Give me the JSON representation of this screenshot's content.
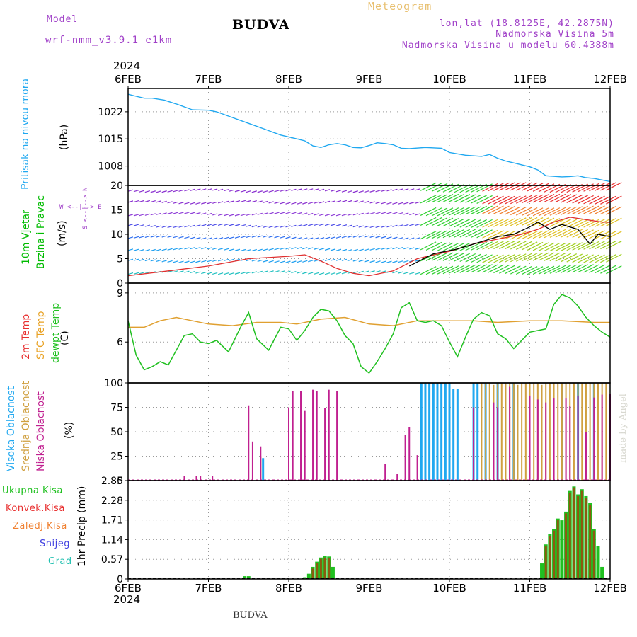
{
  "header": {
    "model_label": "Model",
    "model_name": "wrf-nmm_v3.9.1 e1km",
    "title": "BUDVA",
    "meteogram": "Meteogram",
    "lonlat": "lon,lat (18.8125E, 42.2875N)",
    "elev": "Nadmorska Visina 5m",
    "elev_model": "Nadmorska Visina u modelu 60.4388m",
    "footer": "BUDVA",
    "watermark": "made by Angel"
  },
  "time_axis": {
    "year": "2024",
    "ticks": [
      "6FEB",
      "7FEB",
      "8FEB",
      "9FEB",
      "10FEB",
      "11FEB",
      "12FEB"
    ]
  },
  "panels": {
    "pressure": {
      "labels": [
        "Pritisak na nivou mora",
        "(hPa)"
      ],
      "colors": [
        "#20a8f0",
        "#000000"
      ]
    },
    "wind": {
      "labels": [
        "10m Vjetar",
        "Brzina i Pravac",
        "(m/s)"
      ],
      "colors": [
        "#00bb00",
        "#00bb00",
        "#000000"
      ],
      "compass": "W <--|--> E",
      "compass_v": "S <--|--> N"
    },
    "temp": {
      "labels": [
        "2m Temp",
        "SFC Temp",
        "dewpt Temp",
        "(C)"
      ],
      "colors": [
        "#e83030",
        "#e8a020",
        "#20c020",
        "#000000"
      ]
    },
    "cloud": {
      "labels": [
        "Visoka Oblacnost",
        "Srednja Oblacnost",
        "Niska Oblacnost",
        "(%)"
      ],
      "colors": [
        "#20a8f0",
        "#d0a040",
        "#c02090",
        "#000000"
      ]
    },
    "precip": {
      "legend": [
        "Ukupna Kisa",
        "Konvek.Kisa",
        "Zaledj.Kisa",
        "Snijeg",
        "Grad"
      ],
      "legend_colors": [
        "#20c020",
        "#e83030",
        "#f08030",
        "#4040e0",
        "#20c0b0"
      ],
      "ylabel": "1hr Precip (mm)"
    }
  },
  "chart_data": [
    {
      "type": "line",
      "title": "Pritisak na nivou mora",
      "ylabel": "(hPa)",
      "ylim": [
        1003,
        1028
      ],
      "yticks": [
        1008,
        1015,
        1022
      ],
      "x_days": [
        0,
        0.1,
        0.2,
        0.3,
        0.45,
        0.6,
        0.8,
        1.0,
        1.1,
        1.3,
        1.5,
        1.7,
        1.9,
        2.1,
        2.2,
        2.3,
        2.4,
        2.5,
        2.6,
        2.7,
        2.8,
        2.9,
        3.0,
        3.1,
        3.2,
        3.3,
        3.4,
        3.5,
        3.7,
        3.9,
        4.0,
        4.2,
        4.4,
        4.5,
        4.6,
        4.7,
        4.8,
        5.0,
        5.1,
        5.2,
        5.4,
        5.5,
        5.6,
        5.7,
        5.8,
        6.0
      ],
      "values": [
        1026.5,
        1026,
        1025.5,
        1025.5,
        1025,
        1024,
        1022.5,
        1022.4,
        1022,
        1020.5,
        1019,
        1017.5,
        1016,
        1015,
        1014.5,
        1013.2,
        1012.8,
        1013.5,
        1013.8,
        1013.5,
        1012.8,
        1012.7,
        1013.3,
        1014,
        1013.8,
        1013.5,
        1012.6,
        1012.5,
        1012.8,
        1012.6,
        1011.5,
        1010.8,
        1010.5,
        1011,
        1010,
        1009.3,
        1008.8,
        1007.8,
        1007,
        1005.5,
        1005.2,
        1005.3,
        1005.5,
        1005,
        1004.8,
        1004
      ],
      "color": "#20a8f0"
    },
    {
      "type": "line",
      "title": "10m Vjetar Brzina i Pravac",
      "ylabel": "(m/s)",
      "ylim": [
        0,
        20
      ],
      "yticks": [
        0,
        5,
        10,
        15,
        20
      ],
      "series": [
        {
          "color": "#e03030",
          "x_days": [
            0,
            0.5,
            1.0,
            1.5,
            2.0,
            2.2,
            2.4,
            2.6,
            2.8,
            3.0,
            3.3,
            3.6,
            4.0,
            4.3,
            4.6,
            4.9,
            5.1,
            5.3,
            5.5,
            5.7,
            5.9,
            6.0
          ],
          "values": [
            1.5,
            2.5,
            3.5,
            5,
            5.5,
            5.8,
            4.5,
            3,
            2,
            1.5,
            2.5,
            5,
            6.5,
            8,
            9,
            10,
            11,
            12.5,
            13.5,
            13,
            12.5,
            12.5
          ]
        },
        {
          "color": "#000000",
          "x_days": [
            3.5,
            3.8,
            4.1,
            4.4,
            4.6,
            4.8,
            5.0,
            5.1,
            5.25,
            5.4,
            5.6,
            5.75,
            5.85,
            6.0
          ],
          "values": [
            3.5,
            6,
            7,
            8.5,
            9.5,
            10,
            11.5,
            12.5,
            11,
            12,
            11,
            8,
            10,
            9.5
          ]
        }
      ]
    },
    {
      "type": "line",
      "title": "2m Temp / SFC Temp / dewpt Temp",
      "ylabel": "(C)",
      "ylim": [
        3.5,
        9.6
      ],
      "yticks": [
        6,
        9
      ],
      "series": [
        {
          "color": "#e0a030",
          "x_days": [
            0,
            0.2,
            0.4,
            0.6,
            0.8,
            1.0,
            1.3,
            1.6,
            1.9,
            2.1,
            2.4,
            2.7,
            3.0,
            3.3,
            3.6,
            4.0,
            4.3,
            4.6,
            5.0,
            5.4,
            5.8,
            6.0
          ],
          "values": [
            6.9,
            6.9,
            7.3,
            7.5,
            7.3,
            7.1,
            7.0,
            7.2,
            7.2,
            7.1,
            7.4,
            7.5,
            7.1,
            7.0,
            7.3,
            7.3,
            7.3,
            7.2,
            7.3,
            7.3,
            7.2,
            7.2
          ]
        },
        {
          "color": "#20c020",
          "x_days": [
            0,
            0.1,
            0.2,
            0.3,
            0.4,
            0.5,
            0.6,
            0.7,
            0.8,
            0.9,
            1.0,
            1.1,
            1.25,
            1.4,
            1.5,
            1.6,
            1.75,
            1.9,
            2.0,
            2.1,
            2.2,
            2.3,
            2.4,
            2.5,
            2.6,
            2.7,
            2.8,
            2.9,
            3.0,
            3.1,
            3.2,
            3.3,
            3.4,
            3.5,
            3.6,
            3.7,
            3.8,
            3.9,
            4.0,
            4.1,
            4.2,
            4.3,
            4.4,
            4.5,
            4.6,
            4.7,
            4.8,
            4.9,
            5.0,
            5.1,
            5.2,
            5.3,
            5.4,
            5.5,
            5.6,
            5.7,
            5.8,
            5.9,
            6.0
          ],
          "values": [
            7.3,
            5.2,
            4.3,
            4.5,
            4.8,
            4.6,
            5.5,
            6.4,
            6.5,
            6.0,
            5.9,
            6.1,
            5.4,
            6.9,
            7.8,
            6.2,
            5.5,
            6.9,
            6.8,
            6.1,
            6.7,
            7.5,
            8.0,
            7.9,
            7.3,
            6.4,
            5.9,
            4.5,
            4.1,
            4.8,
            5.6,
            6.5,
            8.1,
            8.4,
            7.3,
            7.2,
            7.3,
            7.0,
            6.0,
            5.1,
            6.3,
            7.4,
            7.8,
            7.6,
            6.5,
            6.2,
            5.6,
            6.1,
            6.6,
            6.7,
            6.8,
            8.3,
            8.9,
            8.7,
            8.2,
            7.5,
            7.0,
            6.6,
            6.3
          ]
        }
      ]
    },
    {
      "type": "bar",
      "title": "Oblacnost",
      "ylabel": "(%)",
      "ylim": [
        0,
        100
      ],
      "yticks": [
        0,
        25,
        50,
        75,
        100
      ],
      "series": [
        {
          "name": "Niska Oblacnost",
          "color": "#c02090",
          "x_days": [
            0.7,
            0.85,
            0.9,
            1.05,
            1.5,
            1.55,
            1.65,
            2.0,
            2.05,
            2.15,
            2.2,
            2.3,
            2.35,
            2.45,
            2.5,
            2.6,
            3.2,
            3.35,
            3.45,
            3.5,
            3.6,
            4.3,
            4.55,
            4.6,
            4.75,
            5.0,
            5.1,
            5.2,
            5.3,
            5.45,
            5.5,
            5.6,
            5.7,
            5.8,
            5.9,
            6.0
          ],
          "values": [
            5,
            5,
            5,
            5,
            77,
            40,
            35,
            75,
            92,
            92,
            72,
            93,
            92,
            74,
            93,
            92,
            17,
            7,
            47,
            55,
            26,
            75,
            80,
            75,
            96,
            87,
            83,
            80,
            84,
            84,
            76,
            87,
            50,
            85,
            88,
            89
          ]
        },
        {
          "name": "Srednja Oblacnost",
          "color": "#d0a040",
          "x_days": [
            1.65,
            4.4,
            4.45,
            4.5,
            4.55,
            4.6,
            4.65,
            4.7,
            4.75,
            4.8,
            4.85,
            4.9,
            4.95,
            5.0,
            5.05,
            5.1,
            5.15,
            5.2,
            5.25,
            5.3,
            5.35,
            5.4,
            5.45,
            5.5,
            5.55,
            5.6,
            5.65,
            5.7,
            5.75,
            5.8,
            5.85,
            5.9,
            5.95
          ],
          "values": [
            25,
            100,
            100,
            100,
            98,
            100,
            100,
            100,
            100,
            100,
            98,
            100,
            100,
            100,
            100,
            100,
            98,
            100,
            100,
            100,
            100,
            100,
            100,
            100,
            100,
            100,
            100,
            100,
            100,
            100,
            100,
            100,
            100
          ]
        },
        {
          "name": "Visoka Oblacnost",
          "color": "#20a8f0",
          "x_days": [
            1.68,
            3.65,
            3.7,
            3.75,
            3.8,
            3.85,
            3.9,
            3.95,
            4.0,
            4.05,
            4.1,
            4.3,
            4.35,
            4.45,
            4.6,
            4.8,
            5.4,
            5.6,
            5.8
          ],
          "values": [
            23,
            100,
            100,
            100,
            100,
            100,
            100,
            100,
            100,
            94,
            94,
            100,
            100,
            100,
            100,
            100,
            100,
            100,
            100
          ]
        }
      ]
    },
    {
      "type": "bar",
      "title": "1hr Precip (mm)",
      "ylabel": "1hr Precip (mm)",
      "ylim": [
        0,
        2.85
      ],
      "yticks": [
        0,
        0.57,
        1.14,
        1.71,
        2.28,
        2.85
      ],
      "series": [
        {
          "name": "Ukupna Kisa",
          "color": "#20c020",
          "x_days": [
            1.0,
            1.45,
            1.5,
            2.2,
            2.25,
            2.3,
            2.35,
            2.4,
            2.45,
            2.5,
            2.55,
            5.15,
            5.2,
            5.25,
            5.3,
            5.35,
            5.4,
            5.45,
            5.5,
            5.55,
            5.6,
            5.65,
            5.7,
            5.75,
            5.8,
            5.85,
            5.9
          ],
          "values": [
            0.03,
            0.08,
            0.08,
            0.05,
            0.15,
            0.35,
            0.5,
            0.62,
            0.66,
            0.65,
            0.35,
            0.45,
            1.0,
            1.3,
            1.45,
            1.75,
            1.7,
            1.95,
            2.55,
            2.68,
            2.45,
            2.6,
            2.4,
            2.2,
            1.45,
            0.95,
            0.35
          ]
        },
        {
          "name": "Konvek.Kisa",
          "color": "#8b5a10",
          "x_days": [
            2.3,
            2.35,
            2.4,
            2.45,
            2.5,
            5.2,
            5.25,
            5.3,
            5.35,
            5.45,
            5.5,
            5.55,
            5.6,
            5.65,
            5.7,
            5.75,
            5.8
          ],
          "values": [
            0.3,
            0.45,
            0.58,
            0.62,
            0.6,
            0.95,
            1.25,
            1.4,
            1.7,
            1.9,
            2.5,
            2.65,
            2.4,
            2.55,
            2.35,
            2.15,
            1.4
          ]
        }
      ]
    }
  ]
}
